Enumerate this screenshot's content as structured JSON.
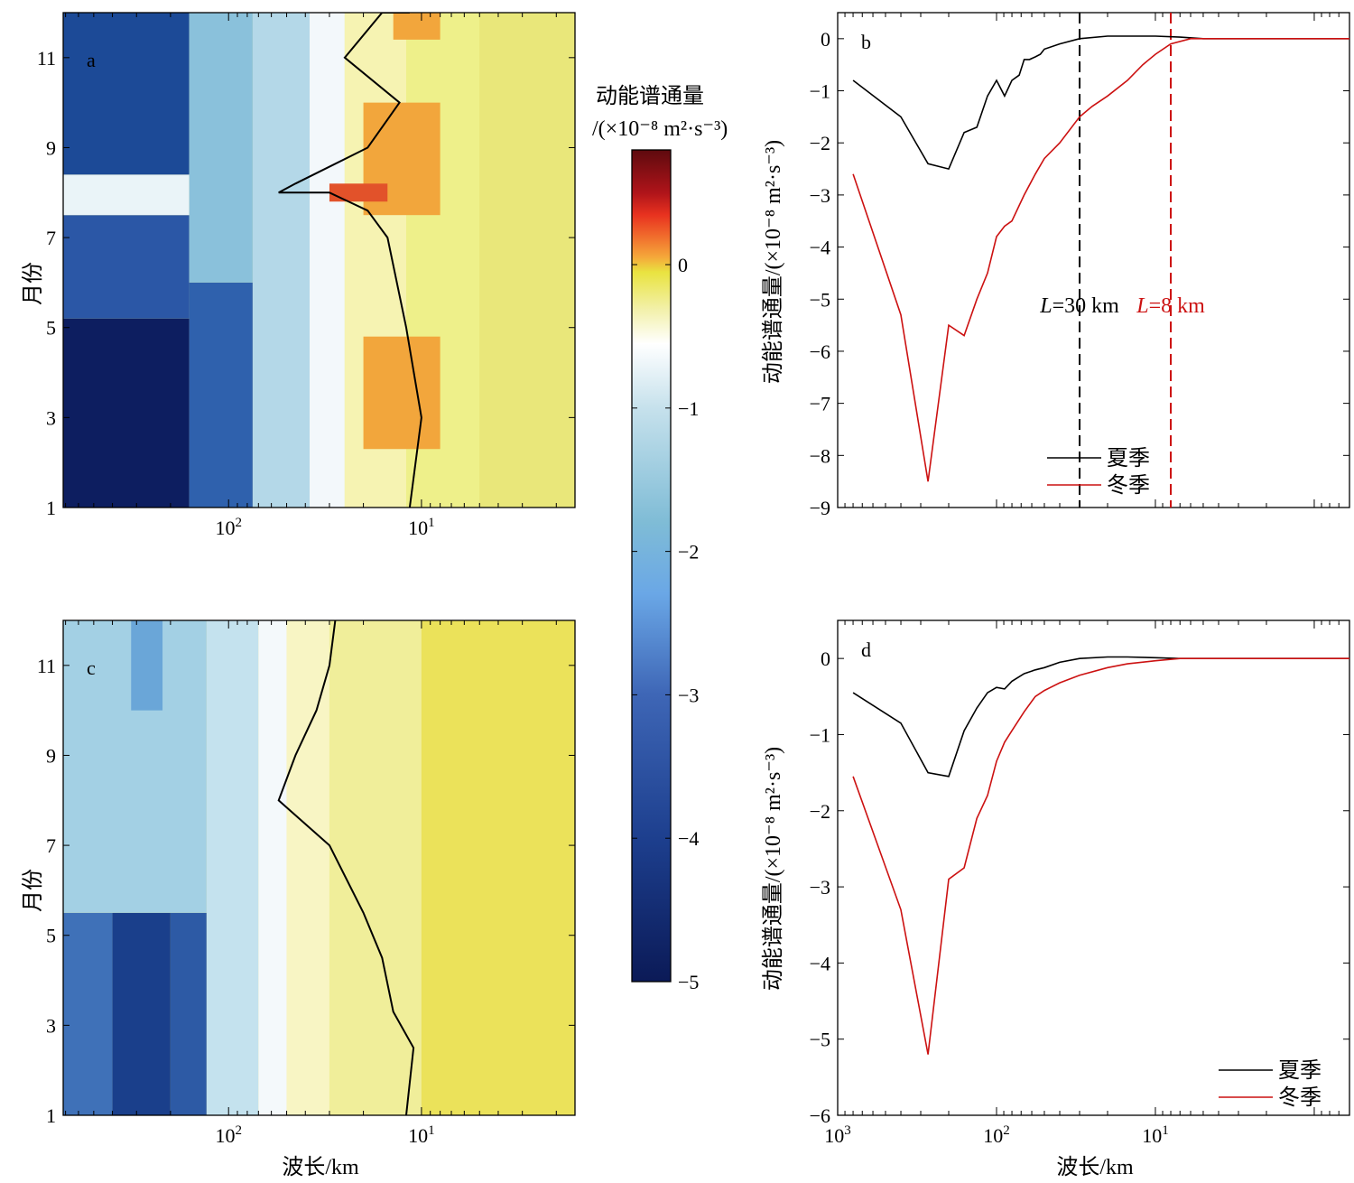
{
  "chart_data": [
    {
      "type": "heatmap",
      "panel_label": "a",
      "xlabel": "",
      "ylabel": "月份",
      "xscale": "log-reversed",
      "xlim": [
        720,
        1.6
      ],
      "ylim": [
        1,
        12
      ],
      "x_tick_labels": [
        "10^2",
        "10^1"
      ],
      "x_tick_values": [
        100,
        10
      ],
      "y_ticks": [
        "1",
        "3",
        "5",
        "7",
        "9",
        "11"
      ],
      "cells": [
        {
          "x0": 720,
          "x1": 160,
          "y0": 1,
          "y1": 5.2,
          "color": "#0d1e60"
        },
        {
          "x0": 720,
          "x1": 160,
          "y0": 5.2,
          "y1": 7.5,
          "color": "#2b57a6"
        },
        {
          "x0": 720,
          "x1": 160,
          "y0": 7.5,
          "y1": 8.4,
          "color": "#eaf4f8"
        },
        {
          "x0": 720,
          "x1": 160,
          "y0": 8.4,
          "y1": 12,
          "color": "#1c4a97"
        },
        {
          "x0": 160,
          "x1": 75,
          "y0": 1,
          "y1": 6,
          "color": "#2f61ad"
        },
        {
          "x0": 160,
          "x1": 75,
          "y0": 6,
          "y1": 12,
          "color": "#8ac1db"
        },
        {
          "x0": 75,
          "x1": 38,
          "y0": 1,
          "y1": 12,
          "color": "#b4d8e8"
        },
        {
          "x0": 38,
          "x1": 25,
          "y0": 1,
          "y1": 12,
          "color": "#f3f8fb"
        },
        {
          "x0": 25,
          "x1": 12,
          "y0": 1,
          "y1": 12,
          "color": "#f6f3b2"
        },
        {
          "x0": 12,
          "x1": 5,
          "y0": 1,
          "y1": 12,
          "color": "#eef08a"
        },
        {
          "x0": 5,
          "x1": 1.6,
          "y0": 1,
          "y1": 12,
          "color": "#e9e77a"
        },
        {
          "x0": 20,
          "x1": 8,
          "y0": 7.5,
          "y1": 10,
          "color": "#f2a63c"
        },
        {
          "x0": 20,
          "x1": 8,
          "y0": 2.3,
          "y1": 4.8,
          "color": "#f2a63c"
        },
        {
          "x0": 14,
          "x1": 8,
          "y0": 11.4,
          "y1": 12,
          "color": "#f2a63c"
        },
        {
          "x0": 30,
          "x1": 15,
          "y0": 7.8,
          "y1": 8.2,
          "color": "#e2522a"
        }
      ],
      "zero_contour": {
        "x": [
          11.5,
          10,
          12,
          15,
          19,
          30,
          55,
          45,
          19,
          13,
          25,
          16,
          11.5
        ],
        "y": [
          1,
          3,
          5,
          7,
          7.6,
          8,
          8,
          8.2,
          9,
          10,
          11,
          12,
          12
        ]
      }
    },
    {
      "type": "line",
      "panel_label": "b",
      "xlabel": "",
      "ylabel": "动能谱通量/(×10⁻⁸ m²·s⁻³)",
      "xscale": "log-reversed",
      "xlim": [
        1000,
        0.6
      ],
      "ylim": [
        -9,
        0.5
      ],
      "y_ticks": [
        "−9",
        "−8",
        "−7",
        "−6",
        "−5",
        "−4",
        "−3",
        "−2",
        "−1",
        "0"
      ],
      "y_tick_values": [
        -9,
        -8,
        -7,
        -6,
        -5,
        -4,
        -3,
        -2,
        -1,
        0
      ],
      "series": [
        {
          "name": "夏季",
          "color": "#000000",
          "x": [
            800,
            400,
            270,
            200,
            160,
            133,
            114,
            100,
            89,
            80,
            72,
            67,
            62,
            57,
            53,
            50,
            40,
            30,
            20,
            15,
            10,
            7,
            5,
            3,
            1,
            0.6
          ],
          "y": [
            -0.8,
            -1.5,
            -2.4,
            -2.5,
            -1.8,
            -1.7,
            -1.1,
            -0.8,
            -1.1,
            -0.8,
            -0.7,
            -0.4,
            -0.4,
            -0.35,
            -0.3,
            -0.2,
            -0.1,
            0.0,
            0.05,
            0.05,
            0.05,
            0.03,
            0.0,
            0.0,
            0.0,
            0.0
          ]
        },
        {
          "name": "冬季",
          "color": "#cc1111",
          "x": [
            800,
            400,
            270,
            200,
            160,
            133,
            114,
            100,
            89,
            80,
            67,
            57,
            50,
            40,
            30,
            25,
            20,
            15,
            12,
            10,
            8,
            6,
            5,
            3,
            1,
            0.6
          ],
          "y": [
            -2.6,
            -5.3,
            -8.5,
            -5.5,
            -5.7,
            -5.0,
            -4.5,
            -3.8,
            -3.6,
            -3.5,
            -3.0,
            -2.6,
            -2.3,
            -2.0,
            -1.5,
            -1.3,
            -1.1,
            -0.8,
            -0.5,
            -0.3,
            -0.1,
            0.0,
            0.0,
            0.0,
            0.0,
            0.0
          ]
        }
      ],
      "vlines": [
        {
          "x": 30,
          "color": "#000000",
          "label_prefix": "L",
          "label_rest": "=30 km"
        },
        {
          "x": 8,
          "color": "#cc1111",
          "label_prefix": "L",
          "label_rest": "=8 km"
        }
      ],
      "legend_position": "bottom-left"
    },
    {
      "type": "heatmap",
      "panel_label": "c",
      "xlabel": "波长/km",
      "ylabel": "月份",
      "xscale": "log-reversed",
      "xlim": [
        720,
        1.6
      ],
      "ylim": [
        1,
        12
      ],
      "x_tick_labels": [
        "10^2",
        "10^1"
      ],
      "x_tick_values": [
        100,
        10
      ],
      "y_ticks": [
        "1",
        "3",
        "5",
        "7",
        "9",
        "11"
      ],
      "cells": [
        {
          "x0": 720,
          "x1": 400,
          "y0": 1,
          "y1": 5.5,
          "color": "#3f71b8"
        },
        {
          "x0": 400,
          "x1": 200,
          "y0": 1,
          "y1": 5.5,
          "color": "#1a3f8b"
        },
        {
          "x0": 200,
          "x1": 130,
          "y0": 1,
          "y1": 5.5,
          "color": "#2d5aa5"
        },
        {
          "x0": 720,
          "x1": 130,
          "y0": 5.5,
          "y1": 12,
          "color": "#a3d0e4"
        },
        {
          "x0": 130,
          "x1": 70,
          "y0": 1,
          "y1": 12,
          "color": "#c4e2ee"
        },
        {
          "x0": 70,
          "x1": 50,
          "y0": 1,
          "y1": 12,
          "color": "#f4f9fb"
        },
        {
          "x0": 50,
          "x1": 30,
          "y0": 1,
          "y1": 12,
          "color": "#f8f5c4"
        },
        {
          "x0": 30,
          "x1": 10,
          "y0": 1,
          "y1": 12,
          "color": "#f0ee9a"
        },
        {
          "x0": 10,
          "x1": 1.6,
          "y0": 1,
          "y1": 12,
          "color": "#ebe25a"
        },
        {
          "x0": 320,
          "x1": 220,
          "y0": 10,
          "y1": 12,
          "color": "#6aa6d8"
        }
      ],
      "zero_contour": {
        "x": [
          12,
          11,
          14,
          16,
          20,
          30,
          55,
          45,
          35,
          30,
          28
        ],
        "y": [
          1,
          2.5,
          3.3,
          4.5,
          5.5,
          7,
          8,
          9,
          10,
          11,
          12
        ]
      }
    },
    {
      "type": "line",
      "panel_label": "d",
      "xlabel": "波长/km",
      "ylabel": "动能谱通量/(×10⁻⁸ m²·s⁻³)",
      "xscale": "log-reversed",
      "xlim": [
        1000,
        0.6
      ],
      "ylim": [
        -6,
        0.5
      ],
      "x_tick_labels": [
        "10^3",
        "10^2",
        "10^1"
      ],
      "x_tick_values": [
        1000,
        100,
        10
      ],
      "y_ticks": [
        "−6",
        "−5",
        "−4",
        "−3",
        "−2",
        "−1",
        "0"
      ],
      "y_tick_values": [
        -6,
        -5,
        -4,
        -3,
        -2,
        -1,
        0
      ],
      "series": [
        {
          "name": "夏季",
          "color": "#000000",
          "x": [
            800,
            400,
            270,
            200,
            160,
            133,
            114,
            100,
            89,
            80,
            67,
            57,
            50,
            40,
            30,
            20,
            15,
            10,
            7,
            5,
            3,
            1,
            0.6
          ],
          "y": [
            -0.45,
            -0.85,
            -1.5,
            -1.55,
            -0.95,
            -0.65,
            -0.45,
            -0.38,
            -0.4,
            -0.3,
            -0.2,
            -0.15,
            -0.12,
            -0.05,
            0.0,
            0.02,
            0.02,
            0.01,
            0.0,
            0.0,
            0.0,
            0.0,
            0.0
          ]
        },
        {
          "name": "冬季",
          "color": "#cc1111",
          "x": [
            800,
            400,
            270,
            200,
            160,
            133,
            114,
            100,
            89,
            80,
            67,
            57,
            50,
            40,
            30,
            20,
            15,
            10,
            7,
            5,
            3,
            1,
            0.6
          ],
          "y": [
            -1.55,
            -3.3,
            -5.2,
            -2.9,
            -2.75,
            -2.1,
            -1.8,
            -1.35,
            -1.1,
            -0.95,
            -0.7,
            -0.5,
            -0.42,
            -0.32,
            -0.22,
            -0.12,
            -0.07,
            -0.03,
            0.0,
            0.0,
            0.0,
            0.0,
            0.0
          ]
        }
      ],
      "legend_position": "bottom-right"
    }
  ],
  "colorbar": {
    "title_line1": "动能谱通量",
    "title_line2": "/(×10⁻⁸ m²·s⁻³)",
    "range": [
      -5,
      0.8
    ],
    "tick_values": [
      0,
      -1,
      -2,
      -3,
      -4,
      -5
    ],
    "tick_labels": [
      "0",
      "−1",
      "−2",
      "−3",
      "−4",
      "−5"
    ],
    "stops": [
      {
        "v": 0.8,
        "color": "#5e0a0e"
      },
      {
        "v": 0.5,
        "color": "#b0141a"
      },
      {
        "v": 0.35,
        "color": "#e8321f"
      },
      {
        "v": 0.2,
        "color": "#f06a2c"
      },
      {
        "v": 0.05,
        "color": "#f5a83a"
      },
      {
        "v": -0.05,
        "color": "#e9e340"
      },
      {
        "v": -0.3,
        "color": "#f2f0a6"
      },
      {
        "v": -0.55,
        "color": "#ffffff"
      },
      {
        "v": -1.0,
        "color": "#c6e1ec"
      },
      {
        "v": -1.8,
        "color": "#7fbcd6"
      },
      {
        "v": -2.3,
        "color": "#6aa7e6"
      },
      {
        "v": -3.0,
        "color": "#3e66b6"
      },
      {
        "v": -4.0,
        "color": "#1d3f8e"
      },
      {
        "v": -5.0,
        "color": "#0b1a57"
      }
    ]
  }
}
